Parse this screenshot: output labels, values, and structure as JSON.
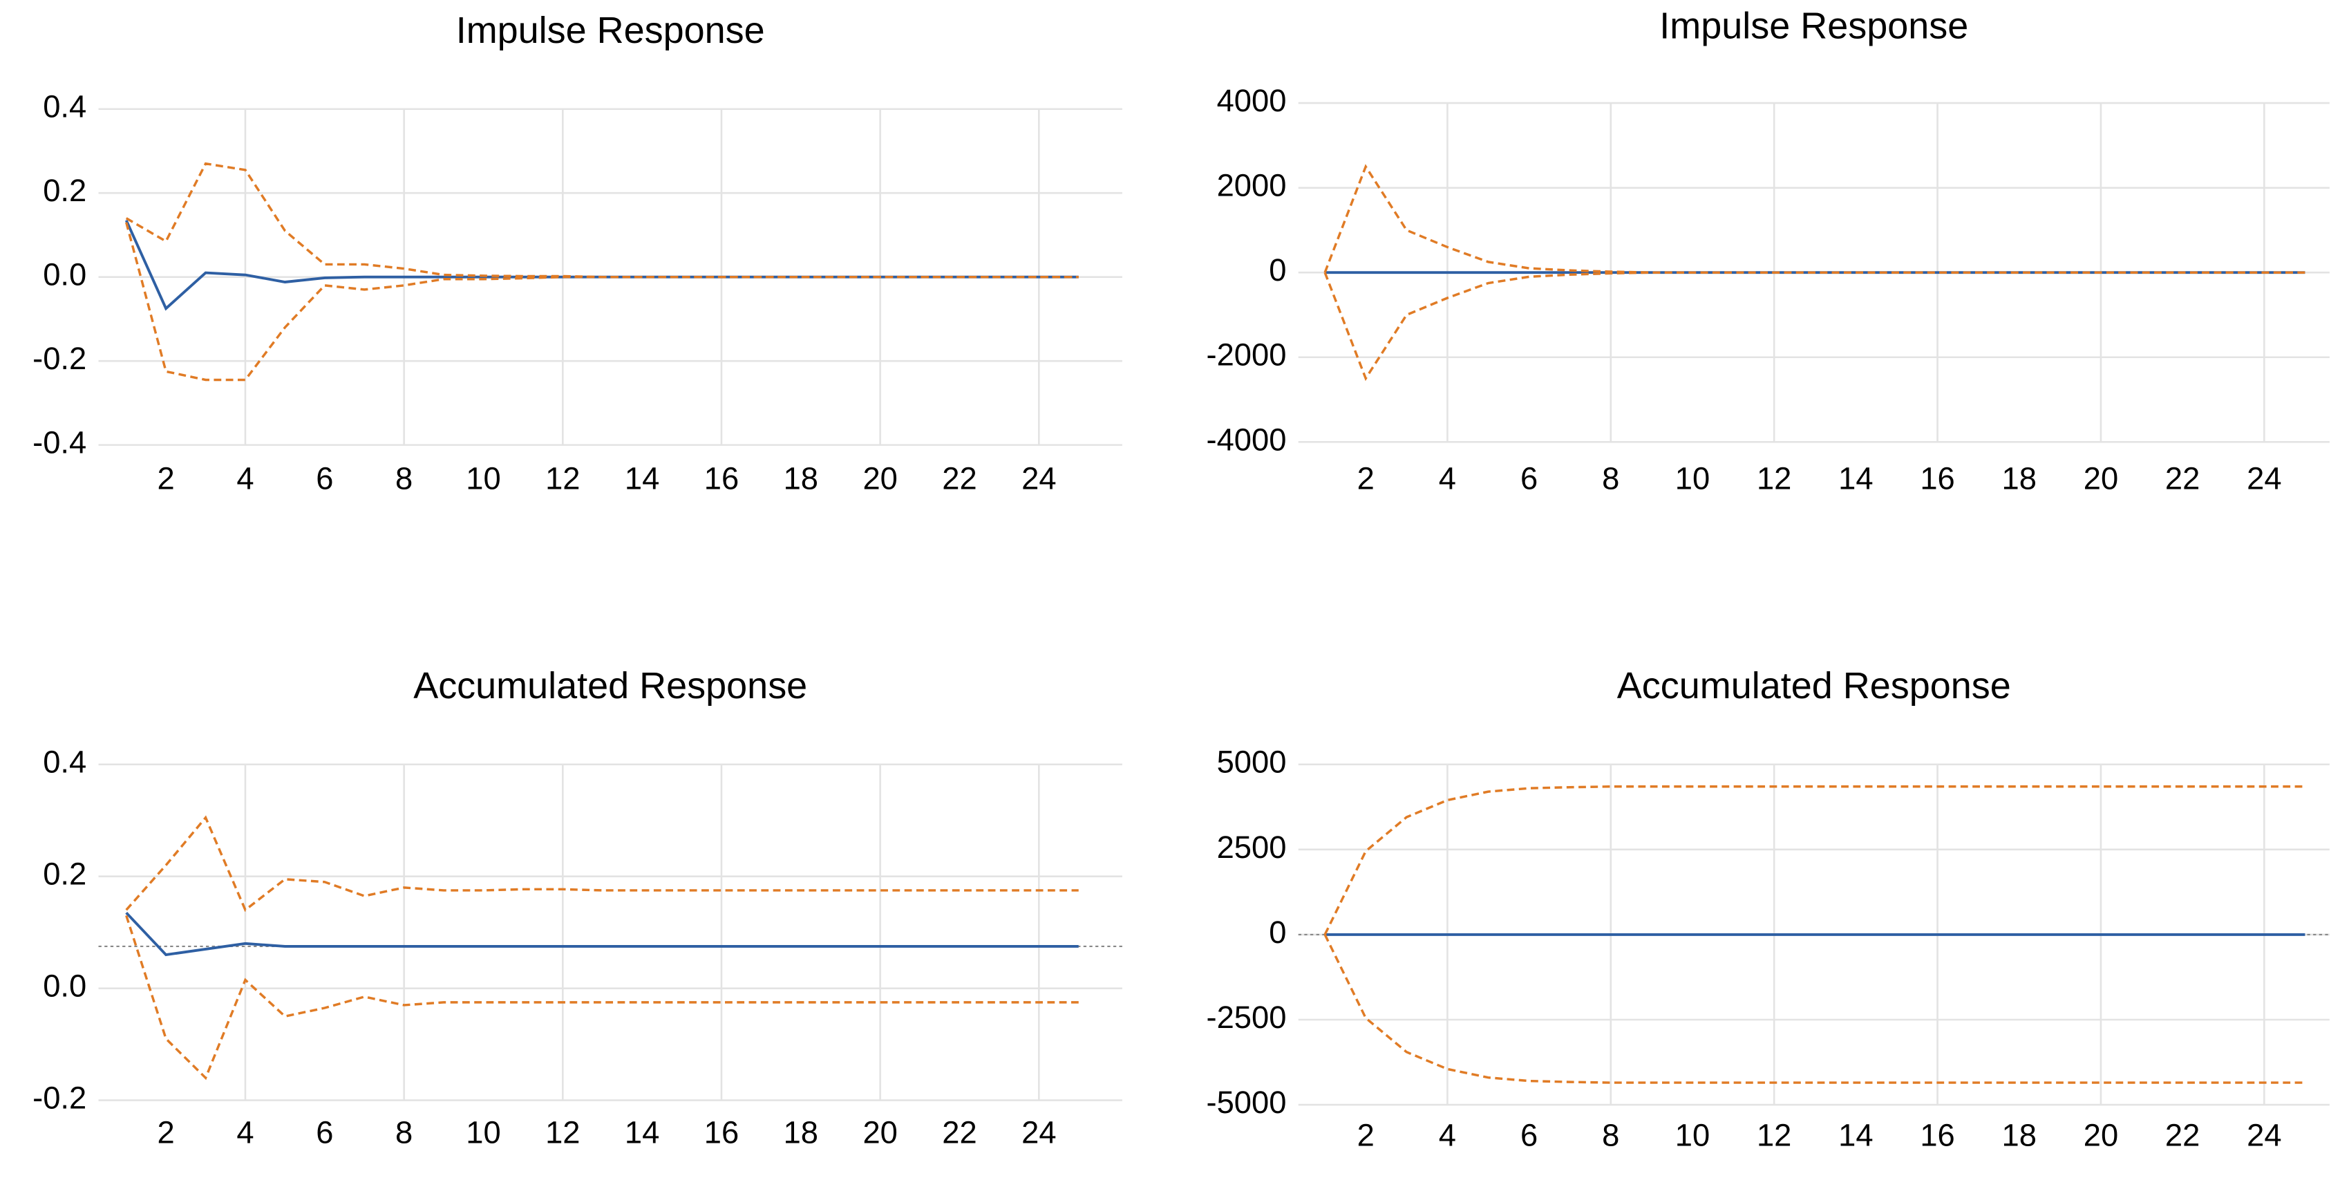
{
  "chart_data": [
    {
      "type": "line",
      "title": "Impulse Response",
      "x": [
        1,
        2,
        3,
        4,
        5,
        6,
        7,
        8,
        9,
        10,
        11,
        12,
        13,
        14,
        15,
        16,
        17,
        18,
        19,
        20,
        21,
        22,
        23,
        24,
        25
      ],
      "series": [
        {
          "color": "#2e5fa3",
          "values": [
            0.135,
            -0.075,
            0.01,
            0.005,
            -0.012,
            -0.002,
            0,
            0,
            0,
            0,
            0,
            0,
            0,
            0,
            0,
            0,
            0,
            0,
            0,
            0,
            0,
            0,
            0,
            0,
            0
          ]
        },
        {
          "color": "#e07b25",
          "values": [
            0.14,
            0.085,
            0.27,
            0.255,
            0.11,
            0.03,
            0.03,
            0.02,
            0.005,
            0.003,
            0.002,
            0.002,
            0,
            0,
            0,
            0,
            0,
            0,
            0,
            0,
            0,
            0,
            0,
            0,
            0
          ]
        },
        {
          "color": "#e07b25",
          "values": [
            0.13,
            -0.225,
            -0.245,
            -0.245,
            -0.12,
            -0.02,
            -0.03,
            -0.02,
            -0.005,
            -0.005,
            -0.003,
            0,
            0,
            0,
            0,
            0,
            0,
            0,
            0,
            0,
            0,
            0,
            0,
            0,
            0
          ]
        }
      ],
      "xlim": [
        0.3,
        26.1
      ],
      "xticks": [
        2,
        4,
        6,
        8,
        10,
        12,
        14,
        16,
        18,
        20,
        22,
        24
      ],
      "ylim": [
        -0.4,
        0.4
      ],
      "yticks": [
        -0.4,
        -0.2,
        {
          "value": 0,
          "label": "0.0"
        },
        0.2,
        0.4
      ],
      "grid": true
    },
    {
      "type": "line",
      "title": "Impulse Response",
      "x": [
        1,
        2,
        3,
        4,
        5,
        6,
        7,
        8,
        9,
        10,
        11,
        12,
        13,
        14,
        15,
        16,
        17,
        18,
        19,
        20,
        21,
        22,
        23,
        24,
        25
      ],
      "series": [
        {
          "color": "#2e5fa3",
          "values": [
            0,
            0,
            0,
            0,
            0,
            0,
            0,
            0,
            0,
            0,
            0,
            0,
            0,
            0,
            0,
            0,
            0,
            0,
            0,
            0,
            0,
            0,
            0,
            0,
            0
          ]
        },
        {
          "color": "#e07b25",
          "values": [
            0,
            2500,
            1000,
            600,
            250,
            100,
            50,
            20,
            0,
            0,
            0,
            0,
            0,
            0,
            0,
            0,
            0,
            0,
            0,
            0,
            0,
            0,
            0,
            0,
            0
          ]
        },
        {
          "color": "#e07b25",
          "values": [
            0,
            -2500,
            -1000,
            -600,
            -250,
            -100,
            -50,
            -20,
            0,
            0,
            0,
            0,
            0,
            0,
            0,
            0,
            0,
            0,
            0,
            0,
            0,
            0,
            0,
            0,
            0
          ]
        }
      ],
      "xlim": [
        0.35,
        25.6
      ],
      "xticks": [
        2,
        4,
        6,
        8,
        10,
        12,
        14,
        16,
        18,
        20,
        22,
        24
      ],
      "ylim": [
        -4000,
        4000
      ],
      "yticks": [
        -4000,
        -2000,
        0,
        2000,
        4000
      ],
      "grid": true
    },
    {
      "type": "line",
      "title": "Accumulated Response",
      "x": [
        1,
        2,
        3,
        4,
        5,
        6,
        7,
        8,
        9,
        10,
        11,
        12,
        13,
        14,
        15,
        16,
        17,
        18,
        19,
        20,
        21,
        22,
        23,
        24,
        25
      ],
      "series": [
        {
          "color": "#2e5fa3",
          "values": [
            0.135,
            0.06,
            0.07,
            0.08,
            0.075,
            0.075,
            0.075,
            0.075,
            0.075,
            0.075,
            0.075,
            0.075,
            0.075,
            0.075,
            0.075,
            0.075,
            0.075,
            0.075,
            0.075,
            0.075,
            0.075,
            0.075,
            0.075,
            0.075,
            0.075
          ]
        },
        {
          "color": "#e07b25",
          "values": [
            0.14,
            0.22,
            0.305,
            0.14,
            0.195,
            0.19,
            0.165,
            0.18,
            0.175,
            0.175,
            0.177,
            0.177,
            0.175,
            0.175,
            0.175,
            0.175,
            0.175,
            0.175,
            0.175,
            0.175,
            0.175,
            0.175,
            0.175,
            0.175,
            0.175
          ]
        },
        {
          "color": "#e07b25",
          "values": [
            0.13,
            -0.09,
            -0.16,
            0.015,
            -0.05,
            -0.035,
            -0.015,
            -0.03,
            -0.025,
            -0.025,
            -0.025,
            -0.025,
            -0.025,
            -0.025,
            -0.025,
            -0.025,
            -0.025,
            -0.025,
            -0.025,
            -0.025,
            -0.025,
            -0.025,
            -0.025,
            -0.025,
            -0.025
          ]
        }
      ],
      "reference_line": 0.075,
      "xlim": [
        0.3,
        26.1
      ],
      "xticks": [
        2,
        4,
        6,
        8,
        10,
        12,
        14,
        16,
        18,
        20,
        22,
        24
      ],
      "ylim": [
        -0.2,
        0.4
      ],
      "yticks": [
        -0.2,
        {
          "value": 0,
          "label": "0.0"
        },
        0.2,
        0.4
      ],
      "grid": true
    },
    {
      "type": "line",
      "title": "Accumulated Response",
      "x": [
        1,
        2,
        3,
        4,
        5,
        6,
        7,
        8,
        9,
        10,
        11,
        12,
        13,
        14,
        15,
        16,
        17,
        18,
        19,
        20,
        21,
        22,
        23,
        24,
        25
      ],
      "series": [
        {
          "color": "#2e5fa3",
          "values": [
            0,
            0,
            0,
            0,
            0,
            0,
            0,
            0,
            0,
            0,
            0,
            0,
            0,
            0,
            0,
            0,
            0,
            0,
            0,
            0,
            0,
            0,
            0,
            0,
            0
          ]
        },
        {
          "color": "#e07b25",
          "values": [
            0,
            2450,
            3450,
            3950,
            4200,
            4300,
            4330,
            4350,
            4350,
            4350,
            4350,
            4350,
            4350,
            4350,
            4350,
            4350,
            4350,
            4350,
            4350,
            4350,
            4350,
            4350,
            4350,
            4350,
            4350
          ]
        },
        {
          "color": "#e07b25",
          "values": [
            0,
            -2450,
            -3450,
            -3950,
            -4200,
            -4300,
            -4330,
            -4350,
            -4350,
            -4350,
            -4350,
            -4350,
            -4350,
            -4350,
            -4350,
            -4350,
            -4350,
            -4350,
            -4350,
            -4350,
            -4350,
            -4350,
            -4350,
            -4350,
            -4350
          ]
        }
      ],
      "reference_line": 0,
      "xlim": [
        0.35,
        25.6
      ],
      "xticks": [
        2,
        4,
        6,
        8,
        10,
        12,
        14,
        16,
        18,
        20,
        22,
        24
      ],
      "ylim": [
        -5000,
        5000
      ],
      "yticks": [
        -5000,
        -2500,
        0,
        2500,
        5000
      ],
      "grid": true
    }
  ]
}
